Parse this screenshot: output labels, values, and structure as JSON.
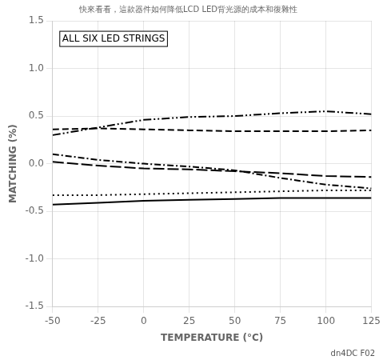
{
  "chart_data": {
    "type": "line",
    "title": "快來看看，這款器件如何降低LCD LED背光源的成本和復雜性",
    "annotations": [
      "ALL SIX LED STRINGS",
      "dn4DC F02"
    ],
    "x_label": "TEMPERATURE (°C)",
    "y_label": "MATCHING (%)",
    "x": [
      -50,
      -25,
      0,
      25,
      50,
      75,
      100,
      125
    ],
    "xlim": [
      -50,
      125
    ],
    "ylim": [
      -1.5,
      1.5
    ],
    "xticks": [
      -50,
      -25,
      0,
      25,
      50,
      75,
      100,
      125
    ],
    "yticks": [
      -1.5,
      {
        "value": -1,
        "label": "-1.0"
      },
      -0.5,
      {
        "value": 0,
        "label": "0.0"
      },
      0.5,
      {
        "value": 1,
        "label": "1.0"
      },
      1.5
    ],
    "grid": true,
    "series": [
      {
        "values": [
          0.3,
          0.38,
          0.46,
          0.49,
          0.5,
          0.53,
          0.55,
          0.52
        ],
        "color": "#000000",
        "line_style": "dash-dot-dot"
      },
      {
        "values": [
          0.36,
          0.37,
          0.36,
          0.35,
          0.34,
          0.34,
          0.34,
          0.35
        ],
        "color": "#000000",
        "line_style": "dashed"
      },
      {
        "values": [
          0.1,
          0.04,
          0.0,
          -0.03,
          -0.07,
          -0.15,
          -0.22,
          -0.26
        ],
        "color": "#000000",
        "line_style": "dash-dot"
      },
      {
        "values": [
          0.02,
          -0.02,
          -0.05,
          -0.06,
          -0.08,
          -0.1,
          -0.13,
          -0.14
        ],
        "color": "#000000",
        "line_style": "long-dash"
      },
      {
        "values": [
          -0.33,
          -0.33,
          -0.32,
          -0.31,
          -0.3,
          -0.29,
          -0.28,
          -0.28
        ],
        "color": "#000000",
        "line_style": "dotted"
      },
      {
        "values": [
          -0.43,
          -0.41,
          -0.39,
          -0.38,
          -0.37,
          -0.36,
          -0.36,
          -0.36
        ],
        "color": "#000000",
        "line_style": "solid"
      }
    ]
  }
}
